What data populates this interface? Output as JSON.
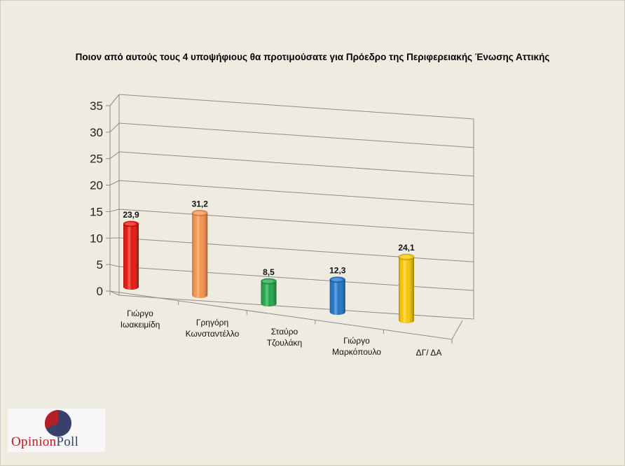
{
  "chart_data": {
    "type": "bar",
    "title": "Ποιον από αυτούς τους 4 υποψήφιους θα προτιμούσατε για Πρόεδρο της Περιφερειακής Ένωσης Αττικής",
    "categories": [
      [
        "Γιώργο",
        "Ιωακειμίδη"
      ],
      [
        "Γρηγόρη",
        "Κωνσταντέλλο"
      ],
      [
        "Σταύρο",
        "Τζουλάκη"
      ],
      [
        "Γιώργο",
        "Μαρκόπουλο"
      ],
      [
        "ΔΓ/ ΔΑ"
      ]
    ],
    "values": [
      23.9,
      31.2,
      8.5,
      12.3,
      24.1
    ],
    "value_labels": [
      "23,9",
      "31,2",
      "8,5",
      "12,3",
      "24,1"
    ],
    "colors": [
      "#e8140c",
      "#f6924a",
      "#20a445",
      "#1e73c8",
      "#f5c500"
    ],
    "ylim": [
      0,
      35
    ],
    "yticks": [
      "0",
      "5",
      "10",
      "15",
      "20",
      "25",
      "30",
      "35"
    ],
    "grid": true,
    "style": "3d-cylinder"
  },
  "logo": {
    "part1": "Opinion",
    "part2": "Poll"
  }
}
